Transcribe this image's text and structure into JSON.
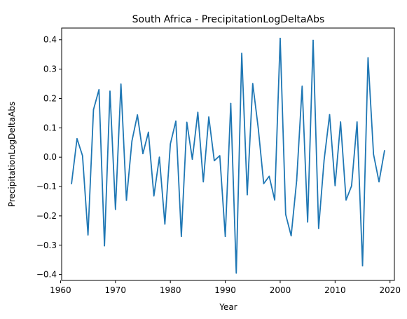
{
  "chart_data": {
    "type": "line",
    "title": "South Africa - PrecipitationLogDeltaAbs",
    "xlabel": "Year",
    "ylabel": "PrecipitationLogDeltaAbs",
    "xlim": [
      1960.2,
      2020.8
    ],
    "ylim": [
      -0.42,
      0.44
    ],
    "xticks": [
      1960,
      1970,
      1980,
      1990,
      2000,
      2010,
      2020
    ],
    "yticks": [
      -0.4,
      -0.3,
      -0.2,
      -0.1,
      0.0,
      0.1,
      0.2,
      0.3,
      0.4
    ],
    "ytick_labels": [
      "−0.4",
      "−0.3",
      "−0.2",
      "−0.1",
      "0.0",
      "0.1",
      "0.2",
      "0.3",
      "0.4"
    ],
    "grid": false,
    "series": [
      {
        "color": "#1f77b4",
        "x": [
          1962,
          1963,
          1964,
          1965,
          1966,
          1967,
          1968,
          1969,
          1970,
          1971,
          1972,
          1973,
          1974,
          1975,
          1976,
          1977,
          1978,
          1979,
          1980,
          1981,
          1982,
          1983,
          1984,
          1985,
          1986,
          1987,
          1988,
          1989,
          1990,
          1991,
          1992,
          1993,
          1994,
          1995,
          1996,
          1997,
          1998,
          1999,
          2000,
          2001,
          2002,
          2003,
          2004,
          2005,
          2006,
          2007,
          2008,
          2009,
          2010,
          2011,
          2012,
          2013,
          2014,
          2015,
          2016,
          2017,
          2018,
          2019
        ],
        "y": [
          -0.09,
          0.063,
          0.005,
          -0.265,
          0.162,
          0.23,
          -0.302,
          0.225,
          -0.178,
          0.249,
          -0.147,
          0.055,
          0.144,
          0.012,
          0.085,
          -0.132,
          0.0,
          -0.228,
          0.045,
          0.123,
          -0.27,
          0.119,
          -0.007,
          0.153,
          -0.084,
          0.137,
          -0.012,
          0.005,
          -0.27,
          0.183,
          -0.395,
          0.354,
          -0.128,
          0.251,
          0.1,
          -0.09,
          -0.065,
          -0.146,
          0.405,
          -0.195,
          -0.268,
          -0.08,
          0.242,
          -0.221,
          0.398,
          -0.243,
          -0.01,
          0.145,
          -0.097,
          0.12,
          -0.146,
          -0.098,
          0.12,
          -0.37,
          0.339,
          0.01,
          -0.084,
          0.022
        ]
      }
    ]
  }
}
